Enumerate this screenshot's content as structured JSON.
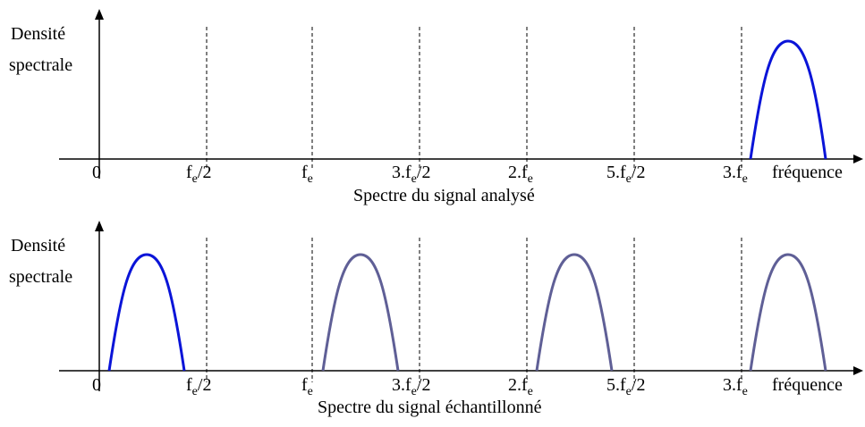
{
  "panels": [
    {
      "ylabel": [
        "Densité",
        "spectrale"
      ],
      "caption": "Spectre du signal analysé",
      "xlabel": "fréquence",
      "ticks": [
        {
          "main": "0",
          "sub": "",
          "tail": ""
        },
        {
          "main": "f",
          "sub": "e",
          "tail": "/2"
        },
        {
          "main": "f",
          "sub": "e",
          "tail": ""
        },
        {
          "main": "3.f",
          "sub": "e",
          "tail": "/2"
        },
        {
          "main": "2.f",
          "sub": "e",
          "tail": ""
        },
        {
          "main": "5.f",
          "sub": "e",
          "tail": "/2"
        },
        {
          "main": "3.f",
          "sub": "e",
          "tail": ""
        }
      ]
    },
    {
      "ylabel": [
        "Densité",
        "spectrale"
      ],
      "caption": "Spectre du signal échantillonné",
      "xlabel": "fréquence",
      "ticks": [
        {
          "main": "0",
          "sub": "",
          "tail": ""
        },
        {
          "main": "f",
          "sub": "e",
          "tail": "/2"
        },
        {
          "main": "f",
          "sub": "e",
          "tail": ""
        },
        {
          "main": "3.f",
          "sub": "e",
          "tail": "/2"
        },
        {
          "main": "2.f",
          "sub": "e",
          "tail": ""
        },
        {
          "main": "5.f",
          "sub": "e",
          "tail": "/2"
        },
        {
          "main": "3.f",
          "sub": "e",
          "tail": ""
        }
      ]
    }
  ],
  "colors": {
    "original": "#0a14d8",
    "alias": "#5f5f96",
    "axis": "#000000",
    "dashed": "#000000"
  }
}
